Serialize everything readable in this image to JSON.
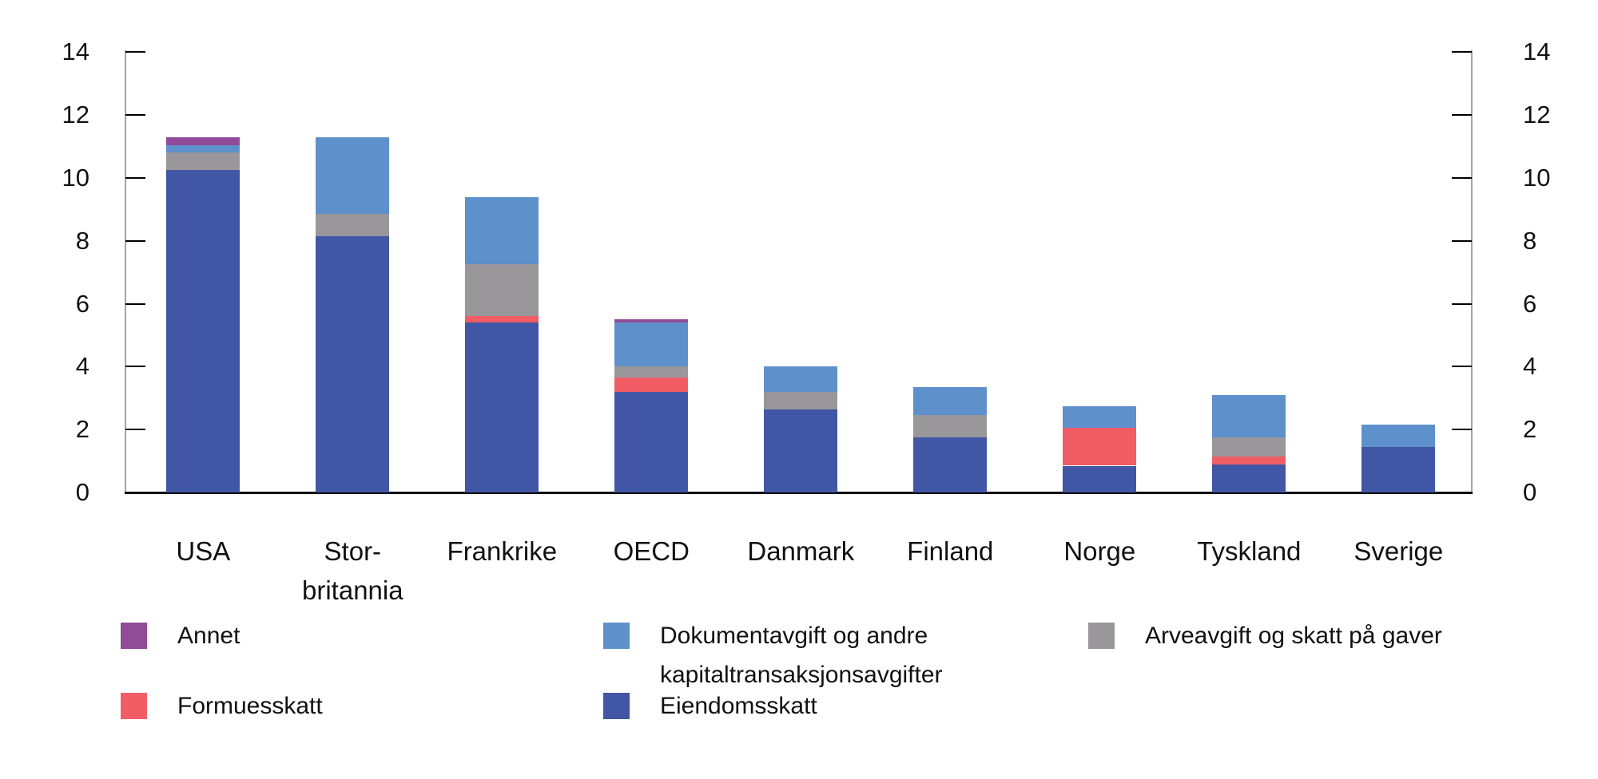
{
  "figure": {
    "background": "#ffffff",
    "text_color": "#111111",
    "axis_line_color": "#a6a4a6",
    "tick_color": "#000000"
  },
  "chart_data": {
    "type": "bar",
    "stacked": true,
    "title": "",
    "xlabel": "",
    "ylabel": "",
    "ylim": [
      0,
      14
    ],
    "yticks": [
      0,
      2,
      4,
      6,
      8,
      10,
      12,
      14
    ],
    "y_axis_sides": [
      "left",
      "right"
    ],
    "grid": false,
    "legend_position": "bottom",
    "categories": [
      "USA",
      "Stor-britannia",
      "Frankrike",
      "OECD",
      "Danmark",
      "Finland",
      "Norge",
      "Tyskland",
      "Sverige"
    ],
    "category_display_lines": [
      [
        "USA"
      ],
      [
        "Stor-",
        "britannia"
      ],
      [
        "Frankrike"
      ],
      [
        "OECD"
      ],
      [
        "Danmark"
      ],
      [
        "Finland"
      ],
      [
        "Norge"
      ],
      [
        "Tyskland"
      ],
      [
        "Sverige"
      ]
    ],
    "series": [
      {
        "name": "Eiendomsskatt",
        "color": "#4156A5",
        "values": [
          10.25,
          8.15,
          5.4,
          3.2,
          2.65,
          1.75,
          0.85,
          0.9,
          1.45
        ]
      },
      {
        "name": "Formuesskatt",
        "color": "#F15D64",
        "values": [
          0,
          0,
          0.2,
          0.45,
          0,
          0,
          1.2,
          0.25,
          0
        ]
      },
      {
        "name": "Arveavgift og skatt på gaver",
        "color": "#99979A",
        "values": [
          0.55,
          0.7,
          1.65,
          0.35,
          0.55,
          0.7,
          0,
          0.6,
          0
        ]
      },
      {
        "name": "Dokumentavgift og andre kapitaltransaksjonsavgifter",
        "color": "#5E90CB",
        "values": [
          0.25,
          2.45,
          2.15,
          1.4,
          0.8,
          0.9,
          0.7,
          1.35,
          0.7
        ]
      },
      {
        "name": "Annet",
        "color": "#904B99",
        "values": [
          0.25,
          0,
          0,
          0.1,
          0,
          0,
          0,
          0,
          0
        ]
      }
    ],
    "totals": [
      11.3,
      11.3,
      9.4,
      5.5,
      4.0,
      3.35,
      2.75,
      3.1,
      2.15
    ],
    "legend_columns": [
      [
        "Annet",
        "Formuesskatt"
      ],
      [
        "Dokumentavgift og andre kapitaltransaksjonsavgifter",
        "Eiendomsskatt"
      ],
      [
        "Arveavgift og skatt på gaver"
      ]
    ]
  }
}
